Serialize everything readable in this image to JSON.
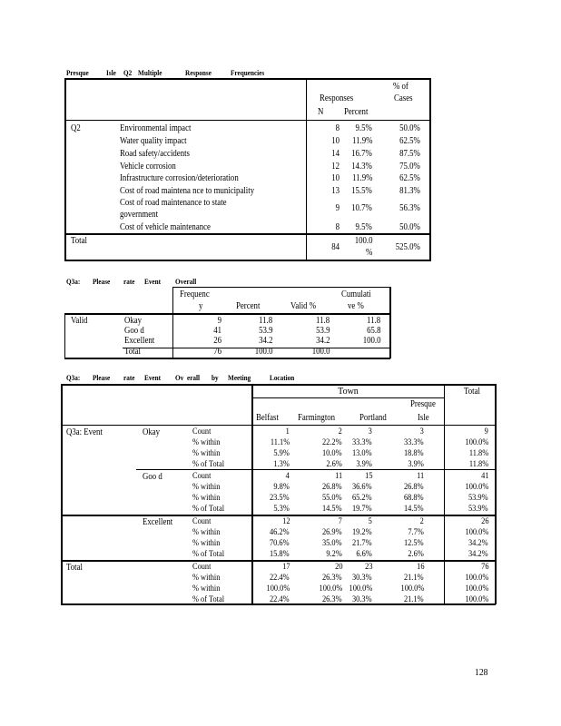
{
  "table1": {
    "caption": [
      "Presque",
      "Isle",
      "Q2",
      "Multiple",
      "Response",
      "Frequencies"
    ],
    "header": {
      "responses": "Responses",
      "pct_cases_1": "% of",
      "pct_cases_2": "Cases",
      "n": "N",
      "percent": "Percent"
    },
    "group_label": "Q2",
    "rows": [
      {
        "label": "Environmental impact",
        "n": "8",
        "percent": "9.5%",
        "cases": "50.0%"
      },
      {
        "label": "Water quality impact",
        "n": "10",
        "percent": "11.9%",
        "cases": "62.5%"
      },
      {
        "label": "Road safety/accidents",
        "n": "14",
        "percent": "16.7%",
        "cases": "87.5%"
      },
      {
        "label": "Vehicle corrosion",
        "n": "12",
        "percent": "14.3%",
        "cases": "75.0%"
      },
      {
        "label": "Infrastructure corrosion/deterioration",
        "n": "10",
        "percent": "11.9%",
        "cases": "62.5%"
      },
      {
        "label": "Cost of road maintena nce to municipality",
        "n": "13",
        "percent": "15.5%",
        "cases": "81.3%"
      },
      {
        "label_1": "Cost of road maintenance to state",
        "label_2": "government",
        "n": "9",
        "percent": "10.7%",
        "cases": "56.3%"
      },
      {
        "label": "Cost of vehicle maintenance",
        "n": "8",
        "percent": "9.5%",
        "cases": "50.0%"
      }
    ],
    "total": {
      "label": "Total",
      "n": "84",
      "percent_1": "100.0",
      "percent_2": "%",
      "cases": "525.0%"
    }
  },
  "table2": {
    "caption": [
      "Q3a:",
      "Please",
      "rate",
      "Event",
      "Overall"
    ],
    "header": {
      "freq_1": "Frequenc",
      "freq_2": "y",
      "percent": "Percent",
      "valid": "Valid %",
      "cum_1": "Cumulati",
      "cum_2": "ve %"
    },
    "group_label": "Valid",
    "rows": [
      {
        "label": "Okay",
        "freq": "9",
        "percent": "11.8",
        "valid": "11.8",
        "cum": "11.8"
      },
      {
        "label": "Goo d",
        "freq": "41",
        "percent": "53.9",
        "valid": "53.9",
        "cum": "65.8"
      },
      {
        "label": "Excellent",
        "freq": "26",
        "percent": "34.2",
        "valid": "34.2",
        "cum": "100.0"
      },
      {
        "label": "Total",
        "freq": "76",
        "percent": "100.0",
        "valid": "100.0",
        "cum": ""
      }
    ]
  },
  "table3": {
    "caption": [
      "Q3a:",
      "Please",
      "rate",
      "Event",
      "Ov",
      "erall",
      "by",
      "Meeting",
      "Location"
    ],
    "header": {
      "town": "Town",
      "total": "Total",
      "belfast": "Belfast",
      "farmington": "Farmington",
      "portland": "Portland",
      "presque_1": "Presque",
      "presque_2": "Isle"
    },
    "row_label": "Q3a: Event",
    "stats": [
      "Count",
      "% within",
      "% within",
      "% of Total"
    ],
    "groups": [
      {
        "label": "Okay",
        "rows": [
          [
            "1",
            "2",
            "3",
            "3",
            "9"
          ],
          [
            "11.1%",
            "22.2%",
            "33.3%",
            "33.3%",
            "100.0%"
          ],
          [
            "5.9%",
            "10.0%",
            "13.0%",
            "18.8%",
            "11.8%"
          ],
          [
            "1.3%",
            "2.6%",
            "3.9%",
            "3.9%",
            "11.8%"
          ]
        ]
      },
      {
        "label": "Goo d",
        "rows": [
          [
            "4",
            "11",
            "15",
            "11",
            "41"
          ],
          [
            "9.8%",
            "26.8%",
            "36.6%",
            "26.8%",
            "100.0%"
          ],
          [
            "23.5%",
            "55.0%",
            "65.2%",
            "68.8%",
            "53.9%"
          ],
          [
            "5.3%",
            "14.5%",
            "19.7%",
            "14.5%",
            "53.9%"
          ]
        ]
      },
      {
        "label": "Excellent",
        "rows": [
          [
            "12",
            "7",
            "5",
            "2",
            "26"
          ],
          [
            "46.2%",
            "26.9%",
            "19.2%",
            "7.7%",
            "100.0%"
          ],
          [
            "70.6%",
            "35.0%",
            "21.7%",
            "12.5%",
            "34.2%"
          ],
          [
            "15.8%",
            "9.2%",
            "6.6%",
            "2.6%",
            "34.2%"
          ]
        ]
      },
      {
        "label": "Total",
        "rows": [
          [
            "17",
            "20",
            "23",
            "16",
            "76"
          ],
          [
            "22.4%",
            "26.3%",
            "30.3%",
            "21.1%",
            "100.0%"
          ],
          [
            "100.0%",
            "100.0%",
            "100.0%",
            "100.0%",
            "100.0%"
          ],
          [
            "22.4%",
            "26.3%",
            "30.3%",
            "21.1%",
            "100.0%"
          ]
        ]
      }
    ]
  },
  "page_number": "128"
}
